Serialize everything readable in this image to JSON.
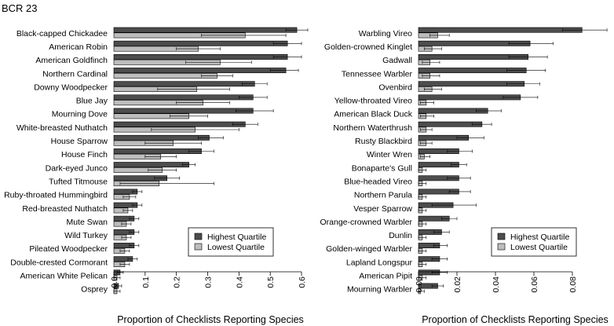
{
  "figure_title": "BCR 23",
  "chart_data": [
    {
      "type": "bar",
      "orientation": "horizontal",
      "xlabel": "Proportion of Checklists Reporting Species",
      "xlim": [
        0,
        0.62
      ],
      "xticks": [
        "0.0",
        "0.1",
        "0.2",
        "0.3",
        "0.4",
        "0.5",
        "0.6"
      ],
      "xtick_values": [
        0,
        0.1,
        0.2,
        0.3,
        0.4,
        0.5,
        0.6
      ],
      "legend": [
        "Highest Quartile",
        "Lowest Quartile"
      ],
      "legend_position": "bottom-right",
      "categories": [
        "Black-capped Chickadee",
        "American Robin",
        "American Goldfinch",
        "Northern Cardinal",
        "Downy Woodpecker",
        "Blue Jay",
        "Mourning Dove",
        "White-breasted Nuthatch",
        "House Sparrow",
        "House Finch",
        "Dark-eyed Junco",
        "Tufted Titmouse",
        "Ruby-throated Hummingbird",
        "Red-breasted Nuthatch",
        "Mute Swan",
        "Wild Turkey",
        "Pileated Woodpecker",
        "Double-crested Cormorant",
        "American White Pelican",
        "Osprey"
      ],
      "series": [
        {
          "name": "Highest Quartile",
          "color": "#4d4d4d",
          "values": [
            0.585,
            0.555,
            0.555,
            0.55,
            0.45,
            0.445,
            0.445,
            0.42,
            0.305,
            0.28,
            0.24,
            0.17,
            0.075,
            0.075,
            0.065,
            0.065,
            0.065,
            0.06,
            0.02,
            0.015
          ],
          "err_low": [
            0.55,
            0.51,
            0.51,
            0.5,
            0.41,
            0.4,
            0.39,
            0.38,
            0.27,
            0.24,
            0.22,
            0.13,
            0.06,
            0.06,
            0.05,
            0.05,
            0.05,
            0.045,
            0.01,
            0.005
          ],
          "err_high": [
            0.62,
            0.6,
            0.6,
            0.59,
            0.49,
            0.49,
            0.51,
            0.46,
            0.35,
            0.32,
            0.26,
            0.21,
            0.09,
            0.09,
            0.08,
            0.08,
            0.08,
            0.075,
            0.03,
            0.025
          ]
        },
        {
          "name": "Lowest Quartile",
          "color": "#bdbdbd",
          "values": [
            0.42,
            0.27,
            0.34,
            0.33,
            0.265,
            0.285,
            0.24,
            0.26,
            0.19,
            0.15,
            0.155,
            0.145,
            0.05,
            0.045,
            0.04,
            0.04,
            0.035,
            0.035,
            0.01,
            0.01
          ],
          "err_low": [
            0.28,
            0.2,
            0.23,
            0.28,
            0.14,
            0.2,
            0.18,
            0.12,
            0.1,
            0.1,
            0.11,
            0.02,
            0.03,
            0.03,
            0.025,
            0.025,
            0.02,
            0.02,
            0.0,
            0.0
          ],
          "err_high": [
            0.55,
            0.34,
            0.44,
            0.38,
            0.37,
            0.37,
            0.3,
            0.4,
            0.28,
            0.2,
            0.2,
            0.32,
            0.07,
            0.06,
            0.055,
            0.055,
            0.05,
            0.05,
            0.02,
            0.02
          ]
        }
      ]
    },
    {
      "type": "bar",
      "orientation": "horizontal",
      "xlabel": "Proportion of Checklists Reporting Species",
      "xlim": [
        0,
        0.1
      ],
      "xticks": [
        "0.00",
        "0.02",
        "0.04",
        "0.06",
        "0.08"
      ],
      "xtick_values": [
        0,
        0.02,
        0.04,
        0.06,
        0.08
      ],
      "legend": [
        "Highest Quartile",
        "Lowest Quartile"
      ],
      "legend_position": "bottom-right",
      "categories": [
        "Warbling Vireo",
        "Golden-crowned Kinglet",
        "Gadwall",
        "Tennessee Warbler",
        "Ovenbird",
        "Yellow-throated Vireo",
        "American Black Duck",
        "Northern Waterthrush",
        "Rusty Blackbird",
        "Winter Wren",
        "Bonaparte's Gull",
        "Blue-headed Vireo",
        "Northern Parula",
        "Vesper Sparrow",
        "Orange-crowned Warbler",
        "Dunlin",
        "Golden-winged Warbler",
        "Lapland Longspur",
        "American Pipit",
        "Mourning Warbler"
      ],
      "series": [
        {
          "name": "Highest Quartile",
          "color": "#4d4d4d",
          "values": [
            0.085,
            0.058,
            0.057,
            0.056,
            0.055,
            0.053,
            0.036,
            0.033,
            0.026,
            0.021,
            0.021,
            0.021,
            0.021,
            0.018,
            0.016,
            0.012,
            0.011,
            0.011,
            0.011,
            0.01
          ],
          "err_low": [
            0.075,
            0.047,
            0.047,
            0.046,
            0.046,
            0.044,
            0.03,
            0.028,
            0.02,
            0.015,
            0.017,
            0.015,
            0.016,
            0.007,
            0.012,
            0.008,
            0.008,
            0.007,
            0.007,
            0.007
          ],
          "err_high": [
            0.098,
            0.07,
            0.067,
            0.066,
            0.063,
            0.062,
            0.043,
            0.038,
            0.034,
            0.028,
            0.025,
            0.027,
            0.027,
            0.03,
            0.02,
            0.016,
            0.015,
            0.015,
            0.015,
            0.013
          ]
        },
        {
          "name": "Lowest Quartile",
          "color": "#bdbdbd",
          "values": [
            0.01,
            0.007,
            0.006,
            0.006,
            0.007,
            0.004,
            0.004,
            0.004,
            0.004,
            0.003,
            0.002,
            0.002,
            0.002,
            0.002,
            0.002,
            0.002,
            0.002,
            0.002,
            0.002,
            0.001
          ],
          "err_low": [
            0.006,
            0.003,
            0.002,
            0.002,
            0.003,
            0.001,
            0.001,
            0.001,
            0.001,
            0.001,
            0.0,
            0.0,
            0.0,
            0.0,
            0.0,
            0.0,
            0.0,
            0.0,
            0.0,
            0.0
          ],
          "err_high": [
            0.016,
            0.012,
            0.011,
            0.011,
            0.012,
            0.008,
            0.008,
            0.007,
            0.007,
            0.006,
            0.004,
            0.004,
            0.004,
            0.004,
            0.004,
            0.004,
            0.004,
            0.004,
            0.004,
            0.003
          ]
        }
      ]
    }
  ]
}
